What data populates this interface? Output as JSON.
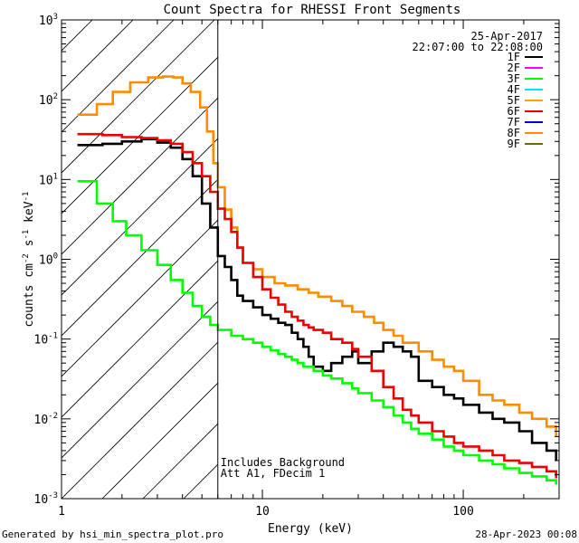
{
  "chart_data": {
    "type": "line",
    "title": "Count Spectra for RHESSI Front Segments",
    "xlabel": "Energy (keV)",
    "ylabel_base": "counts cm",
    "ylabel_exp1": "-2",
    "ylabel_mid": " s",
    "ylabel_exp2": "-1",
    "ylabel_end": " keV",
    "ylabel_exp3": "-1",
    "xscale": "log",
    "yscale": "log",
    "xlim": [
      1.0,
      300.0
    ],
    "ylim": [
      0.001,
      1000.0
    ],
    "x_ticks": [
      {
        "value": 1,
        "label": "1"
      },
      {
        "value": 10,
        "label": "10"
      },
      {
        "value": 100,
        "label": "100"
      }
    ],
    "y_ticks": [
      {
        "value": 0.001,
        "base": "10",
        "exp": "-3"
      },
      {
        "value": 0.01,
        "base": "10",
        "exp": "-2"
      },
      {
        "value": 0.1,
        "base": "10",
        "exp": "-1"
      },
      {
        "value": 1,
        "base": "10",
        "exp": "0"
      },
      {
        "value": 10,
        "base": "10",
        "exp": "1"
      },
      {
        "value": 100,
        "base": "10",
        "exp": "2"
      },
      {
        "value": 1000,
        "base": "10",
        "exp": "3"
      }
    ],
    "attenuated_region_end_kev": 6.0,
    "date": "25-Apr-2017",
    "time_range": "22:07:00 to 22:08:00",
    "annotations": [
      "Includes Background",
      "Att A1, FDecim 1"
    ],
    "legend": [
      {
        "name": "1F",
        "color": "#000000"
      },
      {
        "name": "2F",
        "color": "#ff00ff"
      },
      {
        "name": "3F",
        "color": "#00ff00"
      },
      {
        "name": "4F",
        "color": "#00e5ee"
      },
      {
        "name": "5F",
        "color": "#ffa500"
      },
      {
        "name": "6F",
        "color": "#ee0000"
      },
      {
        "name": "7F",
        "color": "#0000cd"
      },
      {
        "name": "8F",
        "color": "#ff8c00"
      },
      {
        "name": "9F",
        "color": "#6b6b00"
      }
    ],
    "series": [
      {
        "name": "8F",
        "color": "#ff8c00",
        "width": 2.6,
        "points": [
          [
            1.2,
            65
          ],
          [
            1.5,
            88
          ],
          [
            1.8,
            125
          ],
          [
            2.2,
            165
          ],
          [
            2.7,
            190
          ],
          [
            3.2,
            195
          ],
          [
            3.6,
            190
          ],
          [
            4.0,
            160
          ],
          [
            4.4,
            125
          ],
          [
            4.9,
            80
          ],
          [
            5.3,
            40
          ],
          [
            5.7,
            16
          ],
          [
            6.0,
            8
          ],
          [
            6.5,
            4.2
          ],
          [
            7.0,
            2.5
          ],
          [
            7.5,
            1.4
          ],
          [
            8.0,
            0.9
          ],
          [
            9.0,
            0.75
          ],
          [
            10.0,
            0.6
          ],
          [
            11.5,
            0.5
          ],
          [
            13.0,
            0.47
          ],
          [
            15.0,
            0.42
          ],
          [
            17.0,
            0.38
          ],
          [
            19.0,
            0.34
          ],
          [
            22.0,
            0.3
          ],
          [
            25.0,
            0.26
          ],
          [
            28.0,
            0.22
          ],
          [
            32.0,
            0.19
          ],
          [
            36.0,
            0.16
          ],
          [
            40.0,
            0.13
          ],
          [
            45.0,
            0.11
          ],
          [
            50.0,
            0.09
          ],
          [
            55.0,
            0.09
          ],
          [
            60.0,
            0.07
          ],
          [
            70.0,
            0.055
          ],
          [
            80.0,
            0.045
          ],
          [
            90.0,
            0.04
          ],
          [
            100.0,
            0.03
          ],
          [
            120.0,
            0.02
          ],
          [
            140.0,
            0.017
          ],
          [
            160.0,
            0.015
          ],
          [
            190.0,
            0.012
          ],
          [
            220.0,
            0.01
          ],
          [
            260.0,
            0.008
          ],
          [
            290.0,
            0.006
          ]
        ]
      },
      {
        "name": "1F",
        "color": "#000000",
        "width": 2.6,
        "points": [
          [
            1.2,
            27
          ],
          [
            1.6,
            28
          ],
          [
            2.0,
            30
          ],
          [
            2.5,
            32
          ],
          [
            3.0,
            29
          ],
          [
            3.5,
            25
          ],
          [
            4.0,
            18
          ],
          [
            4.5,
            11
          ],
          [
            5.0,
            5
          ],
          [
            5.5,
            2.5
          ],
          [
            6.0,
            1.1
          ],
          [
            6.5,
            0.8
          ],
          [
            7.0,
            0.55
          ],
          [
            7.5,
            0.35
          ],
          [
            8.0,
            0.3
          ],
          [
            9.0,
            0.25
          ],
          [
            10.0,
            0.2
          ],
          [
            11.0,
            0.18
          ],
          [
            12.0,
            0.16
          ],
          [
            13.0,
            0.15
          ],
          [
            14.0,
            0.12
          ],
          [
            15.0,
            0.1
          ],
          [
            16.0,
            0.08
          ],
          [
            17.0,
            0.06
          ],
          [
            18.0,
            0.045
          ],
          [
            20.0,
            0.04
          ],
          [
            22.0,
            0.05
          ],
          [
            25.0,
            0.06
          ],
          [
            28.0,
            0.07
          ],
          [
            30.0,
            0.05
          ],
          [
            35.0,
            0.07
          ],
          [
            40.0,
            0.09
          ],
          [
            45.0,
            0.08
          ],
          [
            50.0,
            0.07
          ],
          [
            55.0,
            0.06
          ],
          [
            60.0,
            0.03
          ],
          [
            70.0,
            0.025
          ],
          [
            80.0,
            0.02
          ],
          [
            90.0,
            0.018
          ],
          [
            100.0,
            0.015
          ],
          [
            120.0,
            0.012
          ],
          [
            140.0,
            0.01
          ],
          [
            160.0,
            0.009
          ],
          [
            190.0,
            0.007
          ],
          [
            220.0,
            0.005
          ],
          [
            260.0,
            0.004
          ],
          [
            290.0,
            0.003
          ]
        ]
      },
      {
        "name": "6F",
        "color": "#ee0000",
        "width": 2.6,
        "points": [
          [
            1.2,
            37
          ],
          [
            1.6,
            36
          ],
          [
            2.0,
            34
          ],
          [
            2.5,
            33
          ],
          [
            3.0,
            31
          ],
          [
            3.5,
            28
          ],
          [
            4.0,
            22
          ],
          [
            4.5,
            16
          ],
          [
            5.0,
            11
          ],
          [
            5.5,
            7
          ],
          [
            6.0,
            4.3
          ],
          [
            6.5,
            3.2
          ],
          [
            7.0,
            2.2
          ],
          [
            7.5,
            1.4
          ],
          [
            8.0,
            0.9
          ],
          [
            9.0,
            0.6
          ],
          [
            10.0,
            0.42
          ],
          [
            11.0,
            0.33
          ],
          [
            12.0,
            0.27
          ],
          [
            13.0,
            0.22
          ],
          [
            14.0,
            0.19
          ],
          [
            15.0,
            0.17
          ],
          [
            16.0,
            0.15
          ],
          [
            17.0,
            0.14
          ],
          [
            18.0,
            0.13
          ],
          [
            20.0,
            0.12
          ],
          [
            22.0,
            0.1
          ],
          [
            25.0,
            0.09
          ],
          [
            28.0,
            0.075
          ],
          [
            30.0,
            0.06
          ],
          [
            35.0,
            0.04
          ],
          [
            40.0,
            0.025
          ],
          [
            45.0,
            0.018
          ],
          [
            50.0,
            0.013
          ],
          [
            55.0,
            0.011
          ],
          [
            60.0,
            0.009
          ],
          [
            70.0,
            0.007
          ],
          [
            80.0,
            0.006
          ],
          [
            90.0,
            0.005
          ],
          [
            100.0,
            0.0045
          ],
          [
            120.0,
            0.004
          ],
          [
            140.0,
            0.0035
          ],
          [
            160.0,
            0.003
          ],
          [
            190.0,
            0.0028
          ],
          [
            220.0,
            0.0025
          ],
          [
            260.0,
            0.0022
          ],
          [
            290.0,
            0.0018
          ]
        ]
      },
      {
        "name": "3F",
        "color": "#00ff00",
        "width": 2.6,
        "points": [
          [
            1.2,
            9.5
          ],
          [
            1.5,
            5
          ],
          [
            1.8,
            3.0
          ],
          [
            2.1,
            2.0
          ],
          [
            2.5,
            1.3
          ],
          [
            3.0,
            0.85
          ],
          [
            3.5,
            0.55
          ],
          [
            4.0,
            0.38
          ],
          [
            4.5,
            0.26
          ],
          [
            5.0,
            0.19
          ],
          [
            5.5,
            0.15
          ],
          [
            6.0,
            0.13
          ],
          [
            7.0,
            0.11
          ],
          [
            8.0,
            0.1
          ],
          [
            9.0,
            0.09
          ],
          [
            10.0,
            0.08
          ],
          [
            11.0,
            0.072
          ],
          [
            12.0,
            0.065
          ],
          [
            13.0,
            0.06
          ],
          [
            14.0,
            0.055
          ],
          [
            15.0,
            0.05
          ],
          [
            16.0,
            0.045
          ],
          [
            18.0,
            0.04
          ],
          [
            20.0,
            0.035
          ],
          [
            22.0,
            0.032
          ],
          [
            25.0,
            0.028
          ],
          [
            28.0,
            0.024
          ],
          [
            30.0,
            0.021
          ],
          [
            35.0,
            0.017
          ],
          [
            40.0,
            0.014
          ],
          [
            45.0,
            0.011
          ],
          [
            50.0,
            0.009
          ],
          [
            55.0,
            0.0075
          ],
          [
            60.0,
            0.0065
          ],
          [
            70.0,
            0.0055
          ],
          [
            80.0,
            0.0045
          ],
          [
            90.0,
            0.004
          ],
          [
            100.0,
            0.0035
          ],
          [
            120.0,
            0.003
          ],
          [
            140.0,
            0.0027
          ],
          [
            160.0,
            0.0024
          ],
          [
            190.0,
            0.0021
          ],
          [
            220.0,
            0.0019
          ],
          [
            260.0,
            0.0017
          ],
          [
            290.0,
            0.0015
          ]
        ]
      }
    ]
  },
  "footer": {
    "generator": "Generated by hsi_min_spectra_plot.pro",
    "timestamp": "28-Apr-2023 00:08"
  }
}
